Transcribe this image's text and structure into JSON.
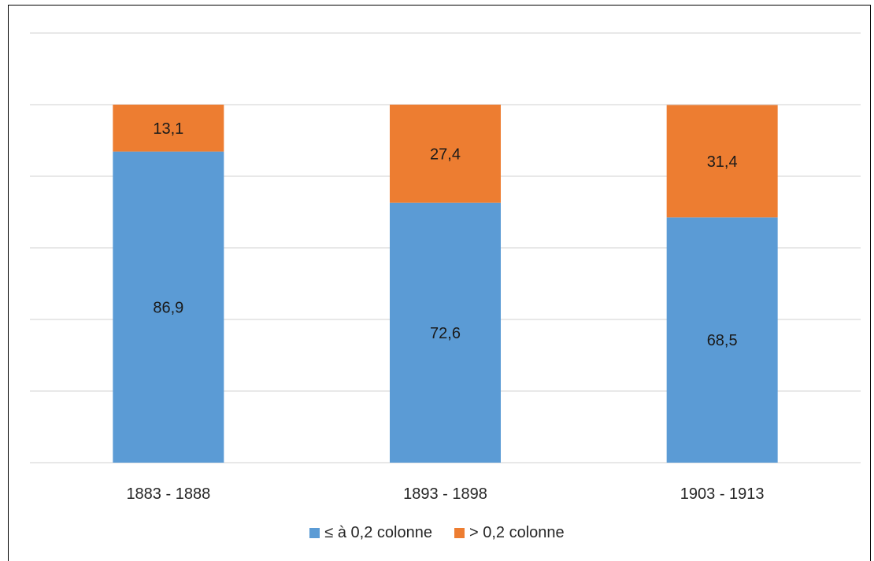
{
  "chart_data": {
    "type": "bar",
    "stacked": true,
    "categories": [
      "1883 - 1888",
      "1893 - 1898",
      "1903 - 1913"
    ],
    "series": [
      {
        "name": "≤ à 0,2 colonne",
        "values": [
          86.9,
          72.6,
          68.5
        ],
        "labels": [
          "86,9",
          "72,6",
          "68,5"
        ],
        "color": "#5B9BD5"
      },
      {
        "name": "> 0,2 colonne",
        "values": [
          13.1,
          27.4,
          31.4
        ],
        "labels": [
          "13,1",
          "27,4",
          "31,4"
        ],
        "color": "#ED7D31"
      }
    ],
    "ylim": [
      0,
      120
    ],
    "grid": true,
    "legend_position": "bottom",
    "title": "",
    "xlabel": "",
    "ylabel": ""
  }
}
